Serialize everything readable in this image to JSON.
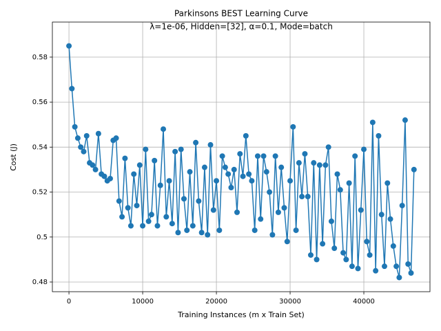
{
  "chart_data": {
    "type": "line",
    "title": "Parkinsons BEST Learning Curve",
    "subtitle": "λ=1e-06,  Hidden=[32], α=0.1, Mode=batch",
    "x_label": "Training Instances (m x Train Set)",
    "y_label": "Cost (J)",
    "x": [
      0,
      400,
      800,
      1200,
      1600,
      2000,
      2400,
      2800,
      3200,
      3600,
      4000,
      4400,
      4800,
      5200,
      5600,
      6000,
      6400,
      6800,
      7200,
      7600,
      8000,
      8400,
      8800,
      9200,
      9600,
      10000,
      10400,
      10800,
      11200,
      11600,
      12000,
      12400,
      12800,
      13200,
      13600,
      14000,
      14400,
      14800,
      15200,
      15600,
      16000,
      16400,
      16800,
      17200,
      17600,
      18000,
      18400,
      18800,
      19200,
      19600,
      20000,
      20400,
      20800,
      21200,
      21600,
      22000,
      22400,
      22800,
      23200,
      23600,
      24000,
      24400,
      24800,
      25200,
      25600,
      26000,
      26400,
      26800,
      27200,
      27600,
      28000,
      28400,
      28800,
      29200,
      29600,
      30000,
      30400,
      30800,
      31200,
      31600,
      32000,
      32400,
      32800,
      33200,
      33600,
      34000,
      34400,
      34800,
      35200,
      35600,
      36000,
      36400,
      36800,
      37200,
      37600,
      38000,
      38400,
      38800,
      39200,
      39600,
      40000,
      40400,
      40800,
      41200,
      41600,
      42000,
      42400,
      42800,
      43200,
      43600,
      44000,
      44400,
      44800,
      45200,
      45600,
      46000,
      46400,
      46800
    ],
    "series": [
      {
        "name": "Cost",
        "color": "#1f77b4",
        "values": [
          0.585,
          0.566,
          0.549,
          0.544,
          0.54,
          0.538,
          0.545,
          0.533,
          0.532,
          0.53,
          0.546,
          0.528,
          0.527,
          0.525,
          0.526,
          0.543,
          0.544,
          0.516,
          0.509,
          0.535,
          0.513,
          0.505,
          0.528,
          0.514,
          0.532,
          0.505,
          0.539,
          0.507,
          0.51,
          0.534,
          0.505,
          0.523,
          0.548,
          0.509,
          0.525,
          0.506,
          0.538,
          0.502,
          0.539,
          0.517,
          0.503,
          0.529,
          0.505,
          0.542,
          0.516,
          0.502,
          0.531,
          0.501,
          0.541,
          0.512,
          0.525,
          0.503,
          0.536,
          0.531,
          0.528,
          0.522,
          0.53,
          0.511,
          0.537,
          0.527,
          0.545,
          0.528,
          0.525,
          0.503,
          0.536,
          0.508,
          0.536,
          0.529,
          0.52,
          0.501,
          0.536,
          0.511,
          0.531,
          0.513,
          0.498,
          0.525,
          0.549,
          0.503,
          0.533,
          0.518,
          0.537,
          0.518,
          0.492,
          0.533,
          0.49,
          0.532,
          0.497,
          0.532,
          0.54,
          0.507,
          0.495,
          0.528,
          0.521,
          0.493,
          0.49,
          0.524,
          0.487,
          0.536,
          0.486,
          0.512,
          0.539,
          0.498,
          0.492,
          0.551,
          0.485,
          0.545,
          0.51,
          0.487,
          0.524,
          0.508,
          0.496,
          0.487,
          0.482,
          0.514,
          0.552,
          0.488,
          0.484,
          0.53
        ]
      }
    ],
    "xlim": [
      -2250,
      48970
    ],
    "ylim": [
      0.4757,
      0.5956
    ],
    "xticks": [
      0,
      10000,
      20000,
      30000,
      40000
    ],
    "yticks": [
      0.48,
      0.5,
      0.52,
      0.54,
      0.56,
      0.58
    ],
    "grid": true
  }
}
